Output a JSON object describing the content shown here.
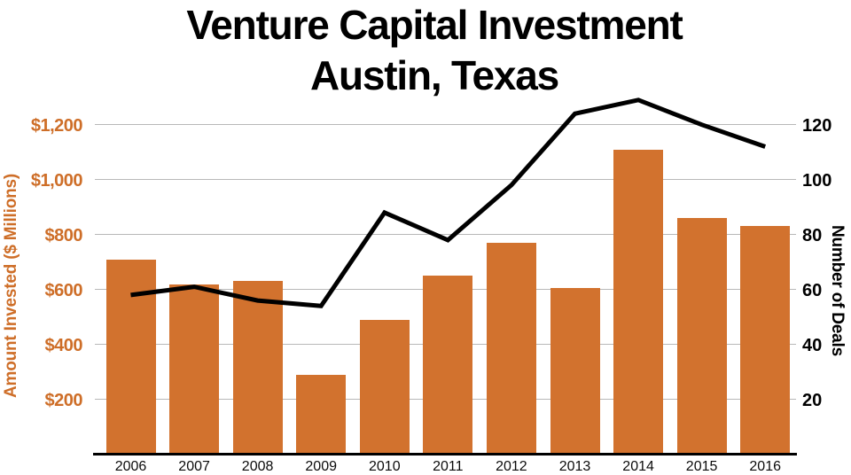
{
  "title": {
    "line1": "Venture Capital Investment",
    "line2": "Austin, Texas"
  },
  "chart_data": {
    "type": "bar",
    "title": "Venture Capital Investment Austin, Texas",
    "categories": [
      "2006",
      "2007",
      "2008",
      "2009",
      "2010",
      "2011",
      "2012",
      "2013",
      "2014",
      "2015",
      "2016"
    ],
    "series": [
      {
        "name": "Amount Invested ($ Millions)",
        "type": "bar",
        "axis": "left",
        "values": [
          710,
          620,
          630,
          290,
          490,
          650,
          770,
          605,
          1110,
          860,
          830
        ]
      },
      {
        "name": "Number of Deals",
        "type": "line",
        "axis": "right",
        "values": [
          58,
          61,
          56,
          54,
          88,
          78,
          98,
          124,
          129,
          120,
          112
        ]
      }
    ],
    "left_axis": {
      "label": "Amount Invested ($ Millions)",
      "tick_labels": [
        "$200",
        "$400",
        "$600",
        "$800",
        "$1,000",
        "$1,200"
      ],
      "tick_values": [
        200,
        400,
        600,
        800,
        1000,
        1200
      ],
      "range": [
        0,
        1300
      ]
    },
    "right_axis": {
      "label": "Number of Deals",
      "tick_labels": [
        "20",
        "40",
        "60",
        "80",
        "100",
        "120"
      ],
      "tick_values": [
        20,
        40,
        60,
        80,
        100,
        120
      ],
      "range": [
        0,
        130
      ]
    },
    "grid": true,
    "legend": "none",
    "colors": {
      "bar": "#D2722E",
      "line": "#000000",
      "left_axis_text": "#CE6E28",
      "gridline": "#B8B8B8",
      "axis_line": "#000000",
      "background": "#FFFFFF",
      "title_text": "#000000"
    }
  }
}
